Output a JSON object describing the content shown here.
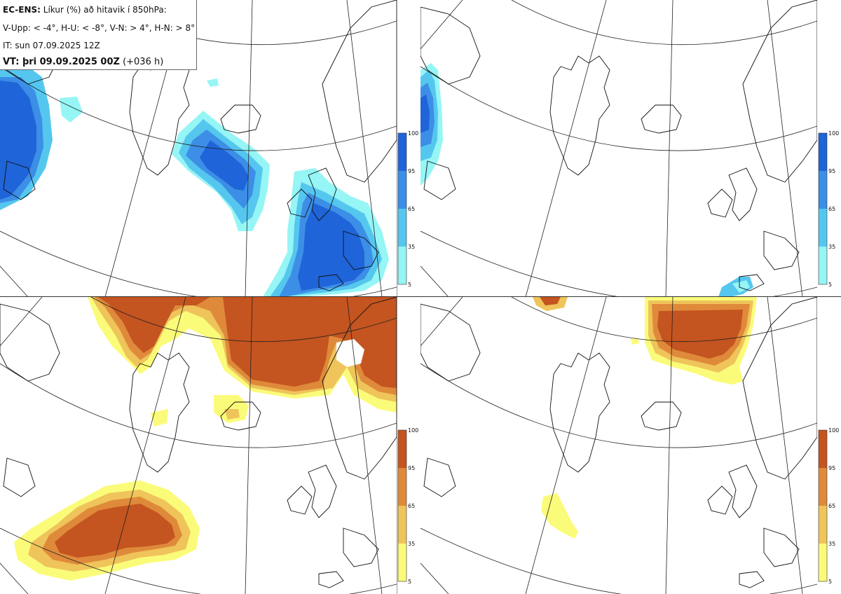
{
  "header": {
    "product": "EC-ENS:",
    "title_rest": " Líkur (%) að hitavik í 850hPa:",
    "thresholds": "V-Upp: < -4°, H-U: < -8°, V-N: > 4°, H-N: > 8°",
    "init_time": "IT: sun 07.09.2025 12Z",
    "valid_label": "VT: þri 09.09.2025 00Z",
    "lead": " (+036 h)"
  },
  "panels": [
    {
      "id": "cold-4",
      "description_key": "V-Upp",
      "palette": "blue"
    },
    {
      "id": "cold-8",
      "description_key": "H-U",
      "palette": "blue"
    },
    {
      "id": "warm-4",
      "description_key": "V-N",
      "palette": "orange"
    },
    {
      "id": "warm-8",
      "description_key": "H-N",
      "palette": "orange"
    }
  ],
  "colorbar": {
    "ticks": [
      "100",
      "95",
      "65",
      "35",
      "5"
    ],
    "blue_colors": [
      "#1f64d8",
      "#3c8ee6",
      "#55c7ef",
      "#96f5f5"
    ],
    "orange_colors": [
      "#c45420",
      "#df8a3a",
      "#efc45a",
      "#fbfb7a"
    ]
  },
  "colors": {
    "coast": "#111111",
    "grid": "#222222"
  }
}
